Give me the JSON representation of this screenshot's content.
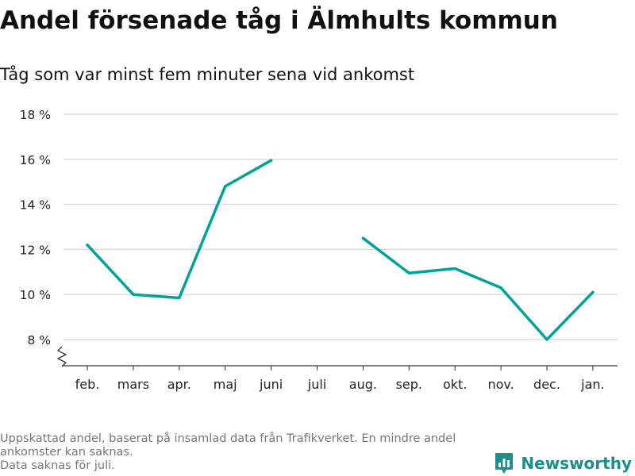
{
  "title": "Andel försenade tåg i Älmhults kommun",
  "subtitle": "Tåg som var minst fem minuter sena vid ankomst",
  "footnote": {
    "line1": "Uppskattad andel, baserat på insamlad data från Trafikverket. En mindre andel ankomster kan saknas.",
    "line2": "Data saknas för juli."
  },
  "brand": {
    "name": "Newsworthy",
    "icon": "newsworthy-logo-icon",
    "color": "#1d8f8a"
  },
  "chart_data": {
    "type": "line",
    "categories": [
      "feb.",
      "mars",
      "apr.",
      "maj",
      "juni",
      "juli",
      "aug.",
      "sep.",
      "okt.",
      "nov.",
      "dec.",
      "jan."
    ],
    "series": [
      {
        "values": [
          12.2,
          10.0,
          9.85,
          14.8,
          15.95,
          null,
          12.5,
          10.95,
          11.15,
          10.3,
          8.0,
          10.1
        ],
        "color": "#00a39a"
      }
    ],
    "ylim": [
      7,
      18
    ],
    "yticks": [
      8,
      10,
      12,
      14,
      16,
      18
    ],
    "ytick_labels": [
      "8 %",
      "10 %",
      "12 %",
      "14 %",
      "16 %",
      "18 %"
    ],
    "y_axis_break": true,
    "grid": true,
    "legend": "none"
  }
}
